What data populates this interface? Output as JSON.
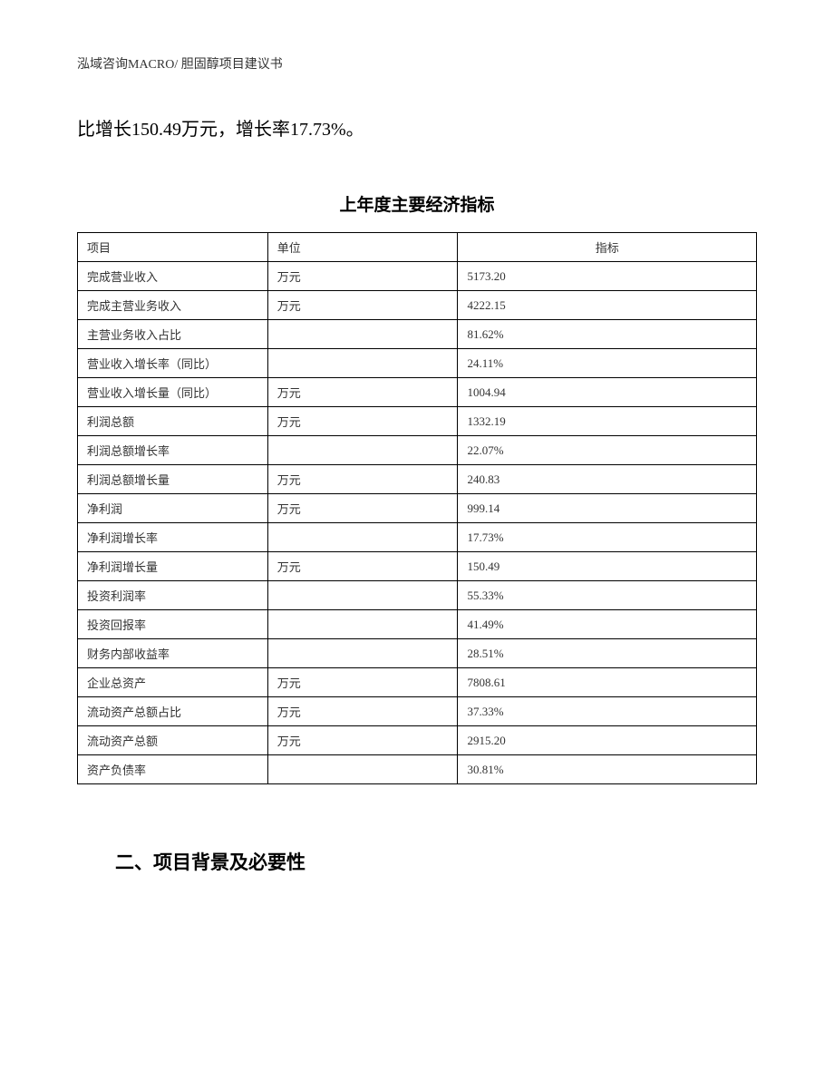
{
  "header": {
    "text": "泓域咨询MACRO/    胆固醇项目建议书"
  },
  "body_paragraph": "比增长150.49万元，增长率17.73%。",
  "table": {
    "title": "上年度主要经济指标",
    "columns": [
      "项目",
      "单位",
      "指标"
    ],
    "rows": [
      {
        "project": "完成营业收入",
        "unit": "万元",
        "value": "5173.20"
      },
      {
        "project": "完成主营业务收入",
        "unit": "万元",
        "value": "4222.15"
      },
      {
        "project": "主营业务收入占比",
        "unit": "",
        "value": "81.62%"
      },
      {
        "project": "营业收入增长率（同比）",
        "unit": "",
        "value": "24.11%"
      },
      {
        "project": "营业收入增长量（同比）",
        "unit": "万元",
        "value": "1004.94"
      },
      {
        "project": "利润总额",
        "unit": "万元",
        "value": "1332.19"
      },
      {
        "project": "利润总额增长率",
        "unit": "",
        "value": "22.07%"
      },
      {
        "project": "利润总额增长量",
        "unit": "万元",
        "value": "240.83"
      },
      {
        "project": "净利润",
        "unit": "万元",
        "value": "999.14"
      },
      {
        "project": "净利润增长率",
        "unit": "",
        "value": "17.73%"
      },
      {
        "project": "净利润增长量",
        "unit": "万元",
        "value": "150.49"
      },
      {
        "project": "投资利润率",
        "unit": "",
        "value": "55.33%"
      },
      {
        "project": "投资回报率",
        "unit": "",
        "value": "41.49%"
      },
      {
        "project": "财务内部收益率",
        "unit": "",
        "value": "28.51%"
      },
      {
        "project": "企业总资产",
        "unit": "万元",
        "value": "7808.61"
      },
      {
        "project": "流动资产总额占比",
        "unit": "万元",
        "value": "37.33%"
      },
      {
        "project": "流动资产总额",
        "unit": "万元",
        "value": "2915.20"
      },
      {
        "project": "资产负债率",
        "unit": "",
        "value": "30.81%"
      }
    ]
  },
  "section_heading": "二、项目背景及必要性"
}
